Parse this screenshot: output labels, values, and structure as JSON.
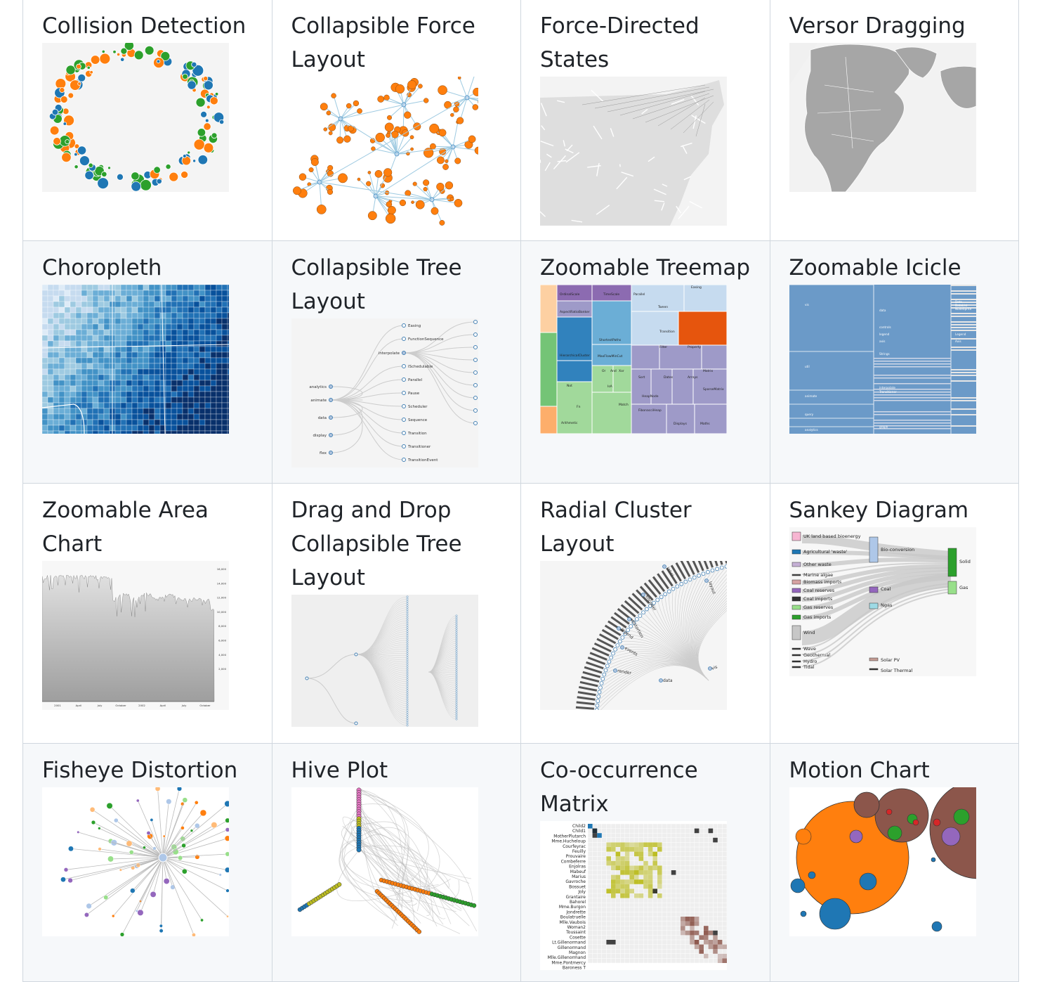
{
  "gallery": {
    "items": [
      {
        "title": "Collision Detection"
      },
      {
        "title": "Collapsible Force Layout"
      },
      {
        "title": "Force-Directed States"
      },
      {
        "title": "Versor Dragging"
      },
      {
        "title": "Choropleth"
      },
      {
        "title": "Collapsible Tree Layout"
      },
      {
        "title": "Zoomable Treemap"
      },
      {
        "title": "Zoomable Icicle"
      },
      {
        "title": "Zoomable Area Chart"
      },
      {
        "title": "Drag and Drop Collapsible Tree Layout"
      },
      {
        "title": "Radial Cluster Layout"
      },
      {
        "title": "Sankey Diagram"
      },
      {
        "title": "Fisheye Distortion"
      },
      {
        "title": "Hive Plot"
      },
      {
        "title": "Co-occurrence Matrix"
      },
      {
        "title": "Motion Chart"
      }
    ],
    "thumb_text": {
      "tree_left": [
        "analytics",
        "animate",
        "data",
        "display",
        "flex"
      ],
      "tree_mid": [
        "interpolate"
      ],
      "tree_right": [
        "Easing",
        "FunctionSequence",
        "ISchedulable",
        "Parallel",
        "Pause",
        "Scheduler",
        "Sequence",
        "Transition",
        "Transitioner",
        "TransitionEvent"
      ],
      "treemap_labels": [
        "OrdinalScale",
        "TimeScale",
        "Parallel",
        "Easing",
        "AspectRatioBanker",
        "Tween",
        "ShortestPaths",
        "HierarchicalCluster",
        "MaxFlowMinCut",
        "Transition",
        "Or",
        "And",
        "Xor",
        "Filter",
        "Property",
        "Sort",
        "Dates",
        "Arrays",
        "Matrix",
        "Not",
        "IsA",
        "HeapNode",
        "SparseMatrix",
        "Fn",
        "Match",
        "FibonacciHeap",
        "Arithmetic",
        "Displays",
        "Maths"
      ],
      "icicle_labels": [
        "vis",
        "data",
        "controls",
        "legend",
        "axis",
        "Strings",
        "util",
        "animate",
        "interpolate",
        "Transitioner",
        "query",
        "analytics",
        "graph",
        "Data",
        "DataList",
        "NodeSprite",
        "Legend",
        "Axis"
      ],
      "area_y_ticks": [
        "16,000",
        "14,000",
        "12,000",
        "10,000",
        "8,000",
        "6,000",
        "4,000",
        "2,000"
      ],
      "area_x_ticks": [
        "2001",
        "April",
        "July",
        "October",
        "2002",
        "April",
        "July",
        "October"
      ],
      "radial_labels": [
        "encoder",
        "distortion",
        "legend",
        "events",
        "render",
        "data",
        "vis",
        "label",
        "layout"
      ],
      "sankey_labels": [
        "UK land based bioenergy",
        "Agricultural 'waste'",
        "Other waste",
        "Marine algae",
        "Biomass imports",
        "Coal reserves",
        "Coal imports",
        "Gas reserves",
        "Gas imports",
        "Wind",
        "Wave",
        "Geothermal",
        "Hydro",
        "Tidal",
        "Bio-conversion",
        "Coal",
        "Ngas",
        "Solar PV",
        "Solar Thermal",
        "Solid",
        "Gas"
      ],
      "matrix_labels": [
        "Child2",
        "Child1",
        "MotherPlutarch",
        "Mme.Hucheloup",
        "Courfeyrac",
        "Feuilly",
        "Prouvaire",
        "Combeferre",
        "Enjolras",
        "Mabeuf",
        "Marius",
        "Gavroche",
        "Bossuet",
        "Joly",
        "Grantaire",
        "Bahorel",
        "Mme.Burgon",
        "Jondrette",
        "Boulatruelle",
        "Mlle.Vaubois",
        "Woman2",
        "Toussaint",
        "Cosette",
        "Lt.Gillenormand",
        "Gillenormand",
        "Magnon",
        "Mlle.Gillenormand",
        "Mme.Pontmercy",
        "Baroness T"
      ]
    }
  },
  "colors": {
    "border": "#d0d7de",
    "alt_row": "#f6f8fa",
    "title_text": "#1f2328",
    "d3_orange": "#ff7f0e",
    "d3_blue": "#1f77b4",
    "d3_green": "#2ca02c",
    "steelblue": "#6b9ac8"
  }
}
